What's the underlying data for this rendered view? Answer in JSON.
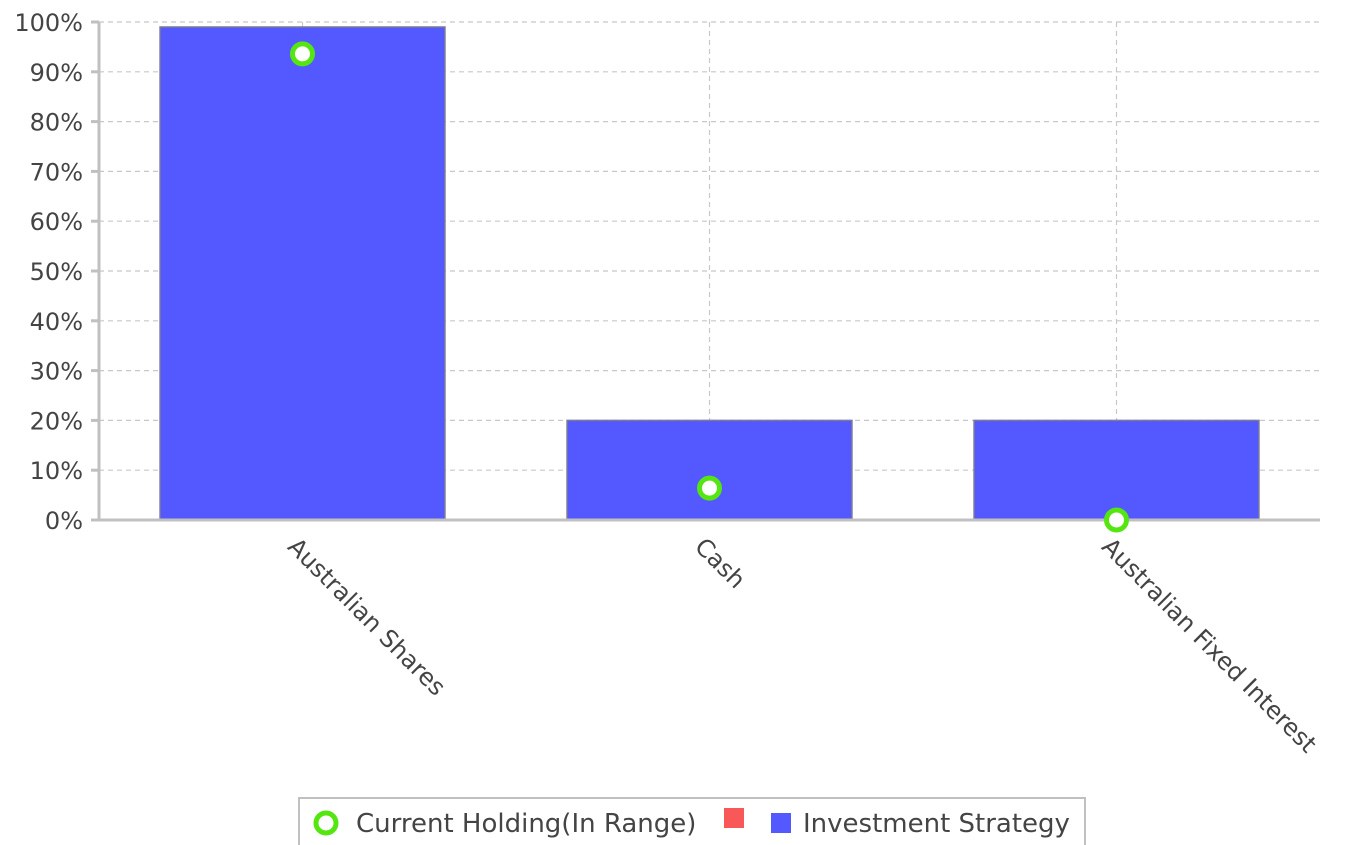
{
  "chart_data": {
    "type": "bar",
    "categories": [
      "Australian Shares",
      "Cash",
      "Australian Fixed Interest"
    ],
    "series": [
      {
        "name": "Investment Strategy",
        "kind": "bar",
        "values": [
          99,
          20,
          20
        ],
        "color": "#5458ff"
      },
      {
        "name": "Current Holding(In Range)",
        "kind": "marker",
        "values": [
          93.6,
          6.4,
          0
        ],
        "color": "#55e612"
      }
    ],
    "legend_extra_swatch_color": "#f95858",
    "ylim": [
      0,
      100
    ],
    "yticks": [
      "0%",
      "10%",
      "20%",
      "30%",
      "40%",
      "50%",
      "60%",
      "70%",
      "80%",
      "90%",
      "100%"
    ],
    "ytick_values": [
      0,
      10,
      20,
      30,
      40,
      50,
      60,
      70,
      80,
      90,
      100
    ],
    "grid": true,
    "legend_position": "bottom-center",
    "title": "",
    "xlabel": "",
    "ylabel": ""
  }
}
